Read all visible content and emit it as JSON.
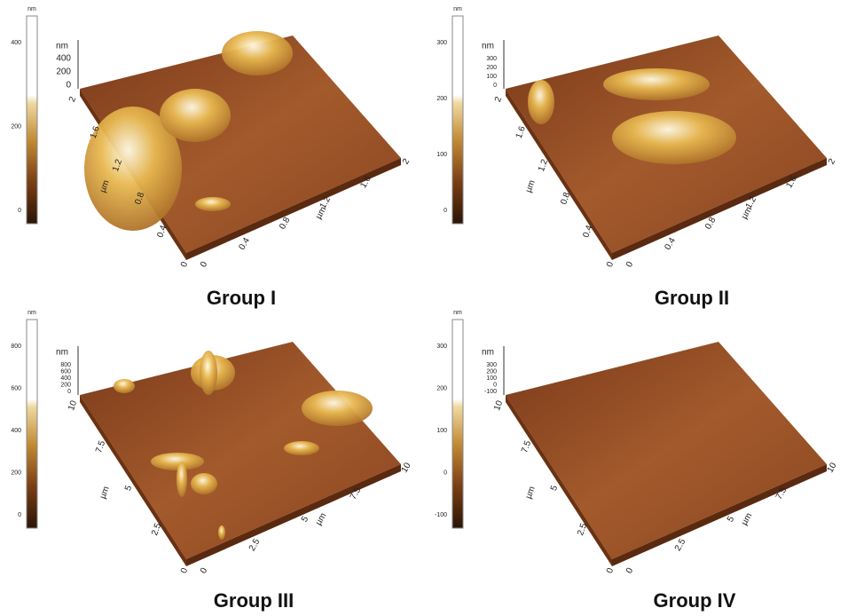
{
  "panels": [
    {
      "title": "Group I",
      "colorbar": {
        "unit": "nm",
        "ticks": [
          "400",
          "200",
          "0"
        ]
      },
      "z_axis": {
        "unit": "nm",
        "ticks": [
          "400",
          "200",
          "0"
        ]
      },
      "y_axis": {
        "unit": "µm",
        "ticks": [
          "0",
          "0.4",
          "0.8",
          "1.2",
          "1.6",
          "2"
        ]
      },
      "x_axis": {
        "unit": "µm",
        "ticks": [
          "0",
          "0.4",
          "0.8",
          "1.2",
          "1.6",
          "2"
        ]
      }
    },
    {
      "title": "Group II",
      "colorbar": {
        "unit": "nm",
        "ticks": [
          "300",
          "200",
          "100",
          "0"
        ]
      },
      "z_axis": {
        "unit": "nm",
        "ticks": [
          "300",
          "200",
          "100",
          "0"
        ]
      },
      "y_axis": {
        "unit": "µm",
        "ticks": [
          "0",
          "0.4",
          "0.8",
          "1.2",
          "1.6",
          "2"
        ]
      },
      "x_axis": {
        "unit": "µm",
        "ticks": [
          "0",
          "0.4",
          "0.8",
          "1.2",
          "1.6",
          "2"
        ]
      }
    },
    {
      "title": "Group III",
      "colorbar": {
        "unit": "nm",
        "ticks": [
          "800",
          "600",
          "400",
          "200",
          "0"
        ]
      },
      "z_axis": {
        "unit": "nm",
        "ticks": [
          "800",
          "600",
          "400",
          "200",
          "0"
        ]
      },
      "y_axis": {
        "unit": "µm",
        "ticks": [
          "0",
          "2.5",
          "5",
          "7.5",
          "10"
        ]
      },
      "x_axis": {
        "unit": "µm",
        "ticks": [
          "0",
          "2.5",
          "5",
          "7.5",
          "10"
        ]
      }
    },
    {
      "title": "Group IV",
      "colorbar": {
        "unit": "nm",
        "ticks": [
          "300",
          "200",
          "100",
          "0",
          "-100"
        ]
      },
      "z_axis": {
        "unit": "nm",
        "ticks": [
          "300",
          "200",
          "100",
          "0",
          "-100"
        ]
      },
      "y_axis": {
        "unit": "µm",
        "ticks": [
          "0",
          "2.5",
          "5",
          "7.5",
          "10"
        ]
      },
      "x_axis": {
        "unit": "µm",
        "ticks": [
          "0",
          "2.5",
          "5",
          "7.5",
          "10"
        ]
      }
    }
  ]
}
